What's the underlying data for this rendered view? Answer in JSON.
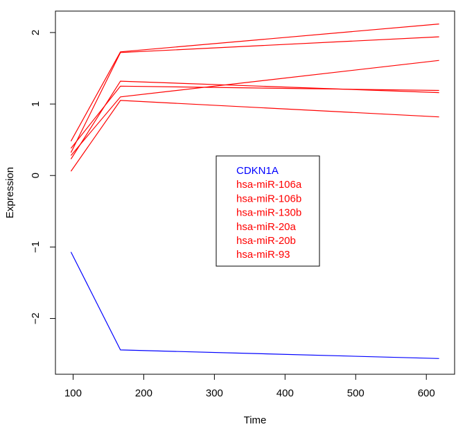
{
  "chart_data": {
    "type": "line",
    "title": "",
    "xlabel": "Time",
    "ylabel": "Expression",
    "xlim": [
      75,
      640
    ],
    "ylim": [
      -2.78,
      2.3
    ],
    "x_ticks": [
      100,
      200,
      300,
      400,
      500,
      600
    ],
    "y_ticks": [
      -2,
      -1,
      0,
      1,
      2
    ],
    "grid": false,
    "legend_position": "center",
    "x": [
      97,
      167,
      618
    ],
    "series": [
      {
        "name": "CDKN1A",
        "color": "#0000ff",
        "values": [
          -1.07,
          -2.44,
          -2.56
        ]
      },
      {
        "name": "hsa-miR-106a",
        "color": "#ff0000",
        "values": [
          0.32,
          1.72,
          1.94
        ]
      },
      {
        "name": "hsa-miR-106b",
        "color": "#ff0000",
        "values": [
          0.48,
          1.73,
          2.12
        ]
      },
      {
        "name": "hsa-miR-130b",
        "color": "#ff0000",
        "values": [
          0.06,
          1.05,
          0.82
        ]
      },
      {
        "name": "hsa-miR-20a",
        "color": "#ff0000",
        "values": [
          0.23,
          1.32,
          1.16
        ]
      },
      {
        "name": "hsa-miR-20b",
        "color": "#ff0000",
        "values": [
          0.38,
          1.25,
          1.19
        ]
      },
      {
        "name": "hsa-miR-93",
        "color": "#ff0000",
        "values": [
          0.28,
          1.1,
          1.61
        ]
      }
    ]
  }
}
